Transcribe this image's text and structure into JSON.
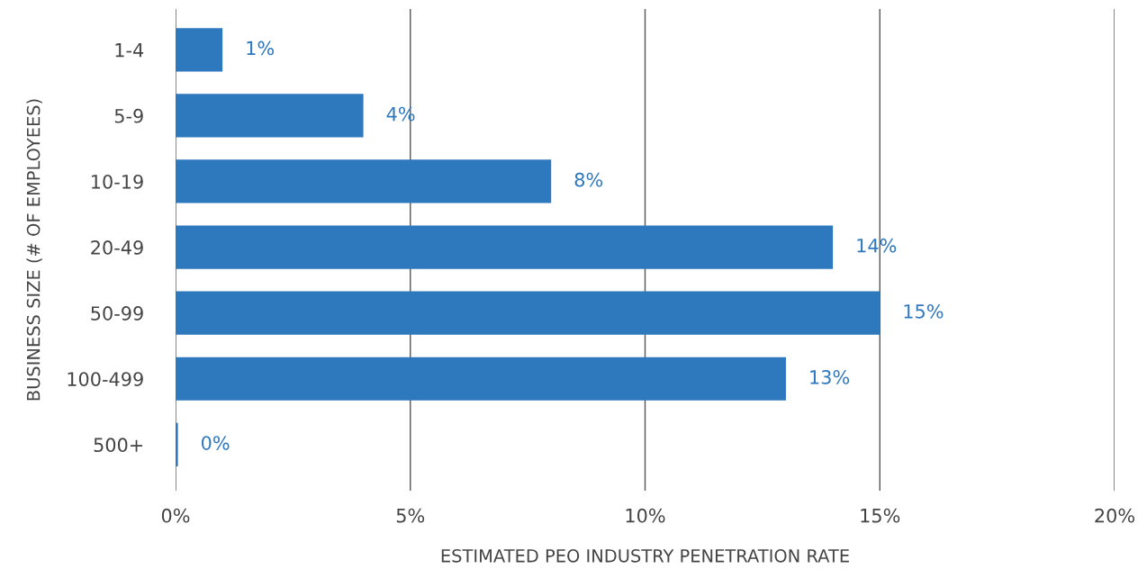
{
  "chart_data": {
    "type": "bar",
    "orientation": "horizontal",
    "xlabel": "ESTIMATED PEO INDUSTRY PENETRATION RATE",
    "ylabel": "BUSINESS SIZE (# OF EMPLOYEES)",
    "categories": [
      "1-4",
      "5-9",
      "10-19",
      "20-49",
      "50-99",
      "100-499",
      "500+"
    ],
    "values": [
      1,
      4,
      8,
      14,
      15,
      13,
      0.05
    ],
    "value_labels": [
      "1%",
      "4%",
      "8%",
      "14%",
      "15%",
      "13%",
      "0%"
    ],
    "color": "#2e78be",
    "xlim": [
      0,
      20
    ],
    "xticks": [
      {
        "value": 0,
        "label": "0%"
      },
      {
        "value": 5,
        "label": "5%"
      },
      {
        "value": 10,
        "label": "10%"
      },
      {
        "value": 15,
        "label": "15%"
      },
      {
        "value": 20,
        "label": "20%"
      }
    ],
    "grid": "x"
  }
}
